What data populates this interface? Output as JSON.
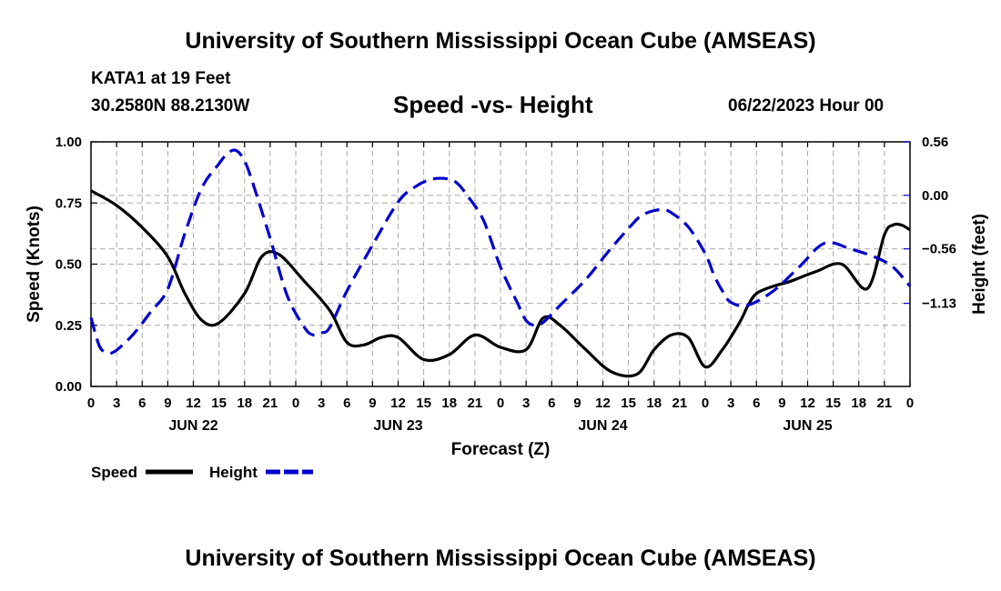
{
  "page": {
    "title_top": "University of Southern Mississippi Ocean Cube (AMSEAS)",
    "title_bottom": "University of Southern Mississippi Ocean Cube (AMSEAS)",
    "station": "KATA1 at 19 Feet",
    "coords": "30.2580N  88.2130W",
    "run_time": "06/22/2023 Hour 00"
  },
  "colors": {
    "speed": "#000000",
    "height": "#0000cc",
    "grid": "#aaaaaa"
  },
  "chart_data": {
    "type": "line",
    "title": "Speed -vs- Height",
    "xlabel": "Forecast (Z)",
    "ylabel": "Speed (Knots)",
    "y2label": "Height (feet)",
    "x_range": [
      0,
      96
    ],
    "ylim": [
      0,
      1.0
    ],
    "y2lim": [
      -2.0,
      0.56
    ],
    "x_ticks": [
      0,
      3,
      6,
      9,
      12,
      15,
      18,
      21,
      24,
      27,
      30,
      33,
      36,
      39,
      42,
      45,
      48,
      51,
      54,
      57,
      60,
      63,
      66,
      69,
      72,
      75,
      78,
      81,
      84,
      87,
      90,
      93,
      96
    ],
    "x_tick_labels": [
      "0",
      "3",
      "6",
      "9",
      "12",
      "15",
      "18",
      "21",
      "0",
      "3",
      "6",
      "9",
      "12",
      "15",
      "18",
      "21",
      "0",
      "3",
      "6",
      "9",
      "12",
      "15",
      "18",
      "21",
      "0",
      "3",
      "6",
      "9",
      "12",
      "15",
      "18",
      "21",
      "0"
    ],
    "date_labels": [
      {
        "x": 12,
        "label": "JUN 22"
      },
      {
        "x": 36,
        "label": "JUN 23"
      },
      {
        "x": 60,
        "label": "JUN 24"
      },
      {
        "x": 84,
        "label": "JUN 25"
      }
    ],
    "y_ticks": [
      0.0,
      0.25,
      0.5,
      0.75,
      1.0
    ],
    "y_tick_labels": [
      "0.00",
      "0.25",
      "0.50",
      "0.75",
      "1.00"
    ],
    "y2_ticks": [
      0.56,
      0.0,
      -0.56,
      -1.13
    ],
    "y2_tick_labels": [
      "0.56",
      "0.00",
      "−0.56",
      "−1.13"
    ],
    "grid": true,
    "legend": [
      {
        "name": "Speed",
        "style": "solid"
      },
      {
        "name": "Height",
        "style": "dashed"
      }
    ],
    "series": [
      {
        "name": "Speed",
        "axis": "left",
        "x": [
          0,
          3,
          6,
          9,
          11,
          13,
          15,
          18,
          20,
          22,
          25,
          28,
          30,
          32,
          34,
          36,
          39,
          42,
          45,
          48,
          51,
          53,
          55,
          58,
          61,
          64,
          66,
          68,
          70,
          72,
          74,
          76,
          77,
          78,
          80,
          82,
          85,
          88,
          91,
          93,
          94,
          95,
          96
        ],
        "y": [
          0.8,
          0.74,
          0.65,
          0.53,
          0.38,
          0.27,
          0.26,
          0.38,
          0.53,
          0.54,
          0.43,
          0.31,
          0.18,
          0.17,
          0.2,
          0.2,
          0.11,
          0.13,
          0.21,
          0.16,
          0.15,
          0.28,
          0.25,
          0.15,
          0.06,
          0.05,
          0.15,
          0.21,
          0.2,
          0.08,
          0.15,
          0.26,
          0.33,
          0.38,
          0.41,
          0.43,
          0.47,
          0.5,
          0.4,
          0.62,
          0.66,
          0.66,
          0.64
        ]
      },
      {
        "name": "Height",
        "axis": "right",
        "x": [
          0,
          1,
          2,
          3,
          5,
          7,
          9,
          11,
          13,
          15,
          16,
          17,
          18,
          19,
          21,
          23,
          25,
          26,
          27,
          28,
          30,
          33,
          36,
          38,
          40,
          42,
          43,
          44,
          46,
          48,
          50,
          51,
          52,
          53,
          55,
          58,
          61,
          64,
          65,
          66,
          67,
          68,
          70,
          72,
          73,
          74,
          75,
          77,
          80,
          83,
          86,
          89,
          92,
          94,
          96
        ],
        "y": [
          -1.28,
          -1.58,
          -1.65,
          -1.62,
          -1.45,
          -1.22,
          -0.98,
          -0.4,
          0.08,
          0.33,
          0.44,
          0.47,
          0.36,
          0.12,
          -0.45,
          -1.05,
          -1.38,
          -1.46,
          -1.44,
          -1.38,
          -1.0,
          -0.52,
          -0.07,
          0.09,
          0.17,
          0.17,
          0.12,
          0.01,
          -0.26,
          -0.75,
          -1.13,
          -1.31,
          -1.36,
          -1.33,
          -1.15,
          -0.88,
          -0.55,
          -0.25,
          -0.19,
          -0.16,
          -0.15,
          -0.18,
          -0.33,
          -0.61,
          -0.83,
          -1.0,
          -1.12,
          -1.15,
          -1.0,
          -0.75,
          -0.5,
          -0.56,
          -0.65,
          -0.75,
          -0.95
        ]
      }
    ]
  }
}
